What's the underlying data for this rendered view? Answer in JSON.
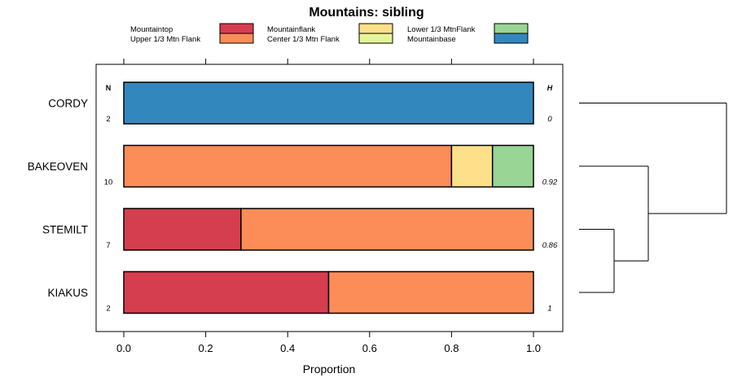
{
  "chart_data": {
    "type": "bar",
    "title": "Mountains: sibling",
    "xlabel": "Proportion",
    "ylabel": "",
    "xlim": [
      0,
      1
    ],
    "x_ticks": [
      "0.0",
      "0.2",
      "0.4",
      "0.6",
      "0.8",
      "1.0"
    ],
    "n_header": "N",
    "h_header": "H",
    "legend": [
      {
        "label": "Mountaintop",
        "color": "#d53e4f"
      },
      {
        "label": "Upper 1/3 Mtn Flank",
        "color": "#fc8d59"
      },
      {
        "label": "Mountainflank",
        "color": "#fee08b"
      },
      {
        "label": "Center 1/3 Mtn Flank",
        "color": "#e6f598"
      },
      {
        "label": "Lower 1/3 MtnFlank",
        "color": "#99d594"
      },
      {
        "label": "Mountainbase",
        "color": "#3288bd"
      }
    ],
    "categories": [
      "CORDY",
      "BAKEOVEN",
      "STEMILT",
      "KIAKUS"
    ],
    "n_values": [
      "2",
      "10",
      "7",
      "2"
    ],
    "h_values": [
      "0",
      "0.92",
      "0.86",
      "1"
    ],
    "series": [
      {
        "name": "Mountaintop",
        "values": [
          0,
          0,
          0.286,
          0.5
        ]
      },
      {
        "name": "Upper 1/3 Mtn Flank",
        "values": [
          0,
          0.8,
          0.714,
          0.5
        ]
      },
      {
        "name": "Mountainflank",
        "values": [
          0,
          0.1,
          0,
          0
        ]
      },
      {
        "name": "Center 1/3 Mtn Flank",
        "values": [
          0,
          0,
          0,
          0
        ]
      },
      {
        "name": "Lower 1/3 MtnFlank",
        "values": [
          0,
          0.1,
          0,
          0
        ]
      },
      {
        "name": "Mountainbase",
        "values": [
          1,
          0,
          0,
          0
        ]
      }
    ],
    "dendrogram": {
      "merges": [
        [
          "STEMILT",
          "KIAKUS"
        ],
        [
          "BAKEOVEN",
          "STEMILT+KIAKUS"
        ],
        [
          "CORDY",
          "BAKEOVEN+STEMILT+KIAKUS"
        ]
      ]
    }
  }
}
